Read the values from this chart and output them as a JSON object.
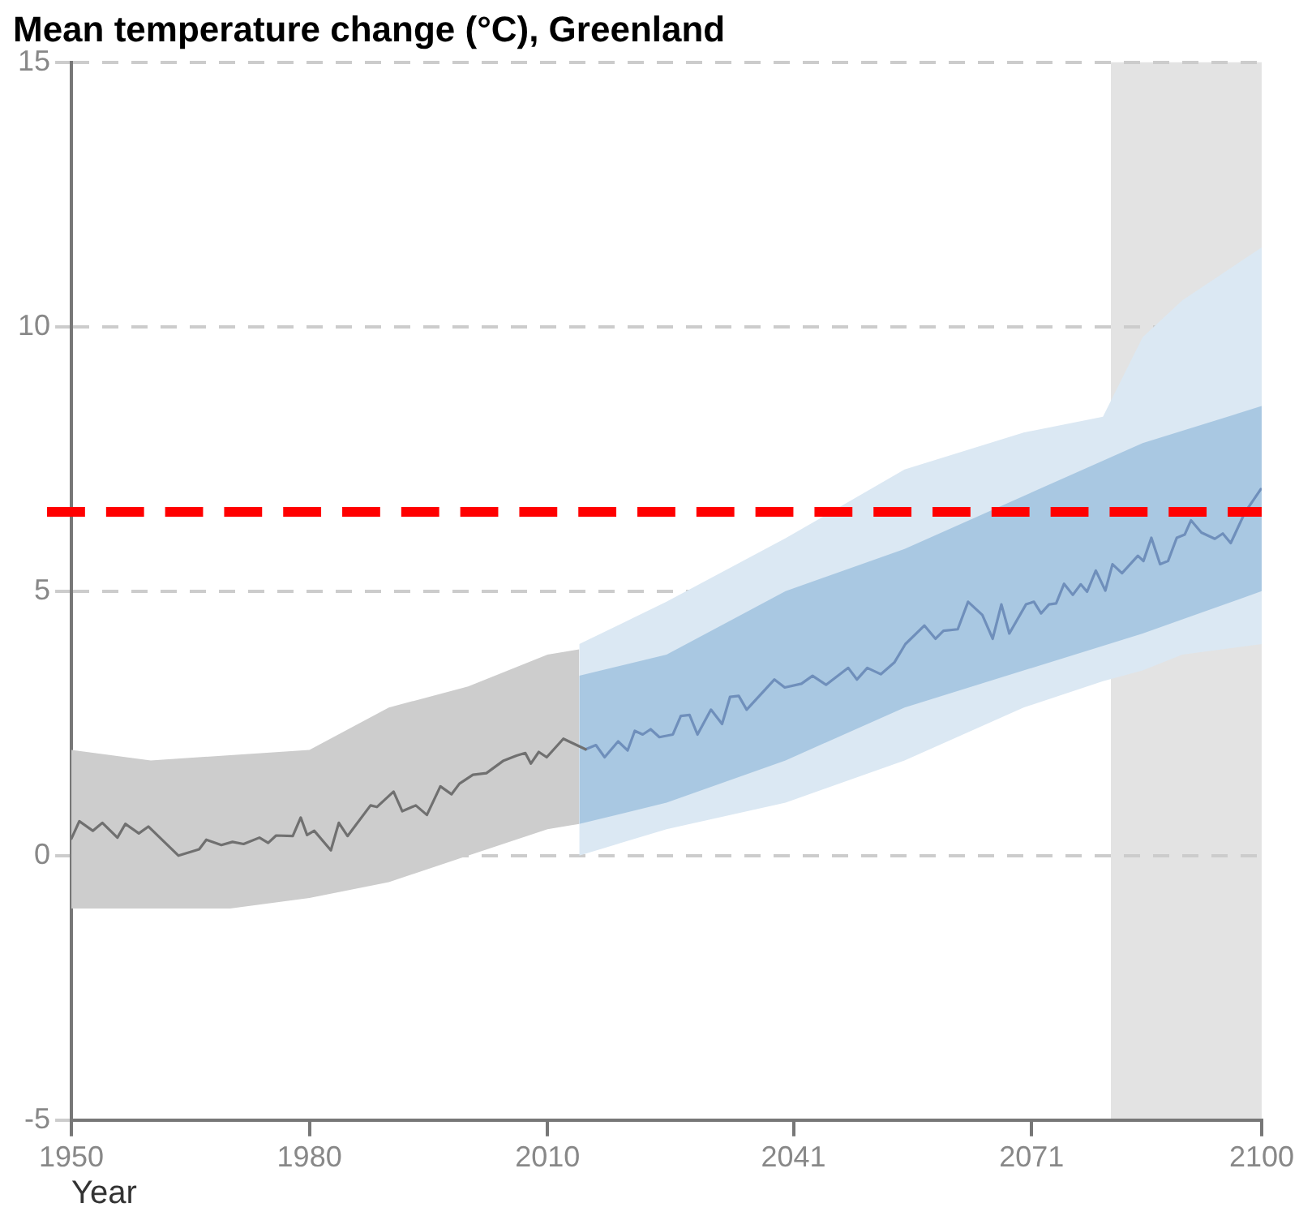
{
  "chart_data": {
    "type": "line",
    "title": "Mean temperature change (°C), Greenland",
    "xlabel": "Year",
    "xlim": [
      1950,
      2100
    ],
    "xticks": [
      1950,
      1980,
      2010,
      2041,
      2071,
      2100
    ],
    "ylim": [
      -5,
      15
    ],
    "yticks": [
      -5,
      0,
      5,
      10,
      15
    ],
    "grid": "y",
    "legend": false,
    "marker": "none",
    "line_style": "solid",
    "series": [
      {
        "type": "area",
        "color": "#dbe8f3",
        "x": [
          2014,
          2025,
          2040,
          2055,
          2070,
          2080,
          2085,
          2090,
          2100
        ],
        "values": [
          null,
          null,
          null,
          null,
          null,
          null,
          null,
          null,
          null
        ],
        "lower": [
          0.0,
          0.5,
          1.0,
          1.8,
          2.8,
          3.3,
          3.5,
          3.8,
          4.0
        ],
        "upper": [
          4.0,
          4.8,
          6.0,
          7.3,
          8.0,
          8.3,
          9.8,
          10.5,
          11.5
        ]
      },
      {
        "type": "area",
        "color": "#a9c8e2",
        "x": [
          2014,
          2025,
          2040,
          2055,
          2070,
          2085,
          2100
        ],
        "values": [
          null,
          null,
          null,
          null,
          null,
          null,
          null
        ],
        "lower": [
          0.6,
          1.0,
          1.8,
          2.8,
          3.5,
          4.2,
          5.0
        ],
        "upper": [
          3.4,
          3.8,
          5.0,
          5.8,
          6.8,
          7.8,
          8.5
        ]
      },
      {
        "type": "area",
        "color": "#cdcdcd",
        "x": [
          1950,
          1960,
          1970,
          1980,
          1990,
          2000,
          2010,
          2014
        ],
        "values": [
          null,
          null,
          null,
          null,
          null,
          null,
          null,
          null
        ],
        "lower": [
          -1.0,
          -1.0,
          -1.0,
          -0.8,
          -0.5,
          0.0,
          0.5,
          0.6
        ],
        "upper": [
          2.0,
          1.8,
          1.9,
          2.0,
          2.8,
          3.2,
          3.8,
          3.9
        ]
      },
      {
        "color": "#707070",
        "x": [
          1950,
          1951,
          1952.7,
          1953.9,
          1955.8,
          1956.8,
          1958.5,
          1959.7,
          1963.5,
          1966.1,
          1967,
          1968.9,
          1970.3,
          1971.7,
          1973.7,
          1974.8,
          1975.8,
          1977.9,
          1978.9,
          1979.7,
          1980.6,
          1982.7,
          1983.7,
          1984.8,
          1987.7,
          1988.5,
          1990.6,
          1991.7,
          1993.4,
          1994.8,
          1996.5,
          1997.9,
          1998.9,
          2000.6,
          2002.3,
          2004.4,
          2006.1,
          2007.2,
          2007.9,
          2008.9,
          2009.9,
          2012,
          2014.8
        ],
        "values": [
          0.32,
          0.65,
          0.47,
          0.62,
          0.34,
          0.6,
          0.42,
          0.55,
          0.0,
          0.12,
          0.3,
          0.2,
          0.26,
          0.22,
          0.34,
          0.24,
          0.38,
          0.37,
          0.72,
          0.39,
          0.47,
          0.1,
          0.62,
          0.37,
          0.95,
          0.92,
          1.21,
          0.84,
          0.95,
          0.77,
          1.31,
          1.16,
          1.36,
          1.53,
          1.56,
          1.79,
          1.89,
          1.94,
          1.74,
          1.96,
          1.86,
          2.21,
          2.01
        ]
      },
      {
        "color": "#6f8fbb",
        "x": [
          2014.8,
          2016.1,
          2017.2,
          2018.9,
          2020.1,
          2021,
          2022,
          2023,
          2024.1,
          2025.8,
          2026.8,
          2027.9,
          2028.9,
          2030.6,
          2032,
          2033,
          2034.1,
          2035.1,
          2038.6,
          2039.9,
          2042,
          2043.4,
          2045.1,
          2047.9,
          2049,
          2050.3,
          2052,
          2053.7,
          2055.1,
          2057.5,
          2058.9,
          2059.9,
          2061.7,
          2063,
          2064.8,
          2066.1,
          2067.2,
          2068.2,
          2070.3,
          2071.3,
          2072.2,
          2073.2,
          2074.1,
          2075.1,
          2076.2,
          2077.2,
          2078,
          2079.1,
          2080.3,
          2081.2,
          2082.4,
          2084.4,
          2085.1,
          2086.1,
          2087.2,
          2088.2,
          2089.3,
          2090.3,
          2091.1,
          2092.4,
          2094.1,
          2095.1,
          2096.1,
          2097.9,
          2099.9
        ],
        "values": [
          2.01,
          2.09,
          1.86,
          2.16,
          1.99,
          2.36,
          2.29,
          2.39,
          2.24,
          2.29,
          2.64,
          2.66,
          2.29,
          2.76,
          2.49,
          3.0,
          3.02,
          2.76,
          3.33,
          3.18,
          3.25,
          3.4,
          3.23,
          3.55,
          3.33,
          3.55,
          3.43,
          3.65,
          4.0,
          4.35,
          4.1,
          4.25,
          4.28,
          4.8,
          4.55,
          4.1,
          4.75,
          4.2,
          4.75,
          4.8,
          4.58,
          4.75,
          4.77,
          5.14,
          4.93,
          5.13,
          4.99,
          5.39,
          5.01,
          5.51,
          5.34,
          5.67,
          5.57,
          6.01,
          5.51,
          5.57,
          6.01,
          6.07,
          6.34,
          6.11,
          5.99,
          6.09,
          5.91,
          6.49,
          6.93
        ]
      }
    ],
    "bands": [
      {
        "axis": "x",
        "from": 2081,
        "to": 2100,
        "color": "#e3e3e3"
      }
    ],
    "ref_lines": [
      {
        "axis": "y",
        "value": 6.5,
        "color": "#ff0000",
        "line_style": "dashed"
      }
    ]
  }
}
